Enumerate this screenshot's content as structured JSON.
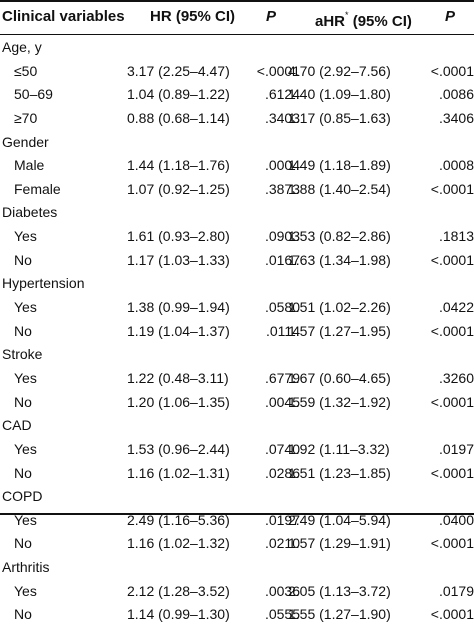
{
  "headers": {
    "variable": "Clinical variables",
    "hr": "HR (95% CI)",
    "p1": "P",
    "ahr_prefix": "aHR",
    "ahr_marker": "*",
    "ahr_suffix": " (95% CI)",
    "p2": "P"
  },
  "rows": [
    {
      "label": "Age, y",
      "hr": "",
      "p1": "",
      "ahr": "",
      "p2": ""
    },
    {
      "label": "≤50",
      "hr": "3.17 (2.25–4.47)",
      "p1": "<.0001",
      "ahr": "4.70 (2.92–7.56)",
      "p2": "<.0001"
    },
    {
      "label": "50–69",
      "hr": "1.04 (0.89–1.22)",
      "p1": ".6124",
      "ahr": "1.40 (1.09–1.80)",
      "p2": ".0086"
    },
    {
      "label": "≥70",
      "hr": "0.88 (0.68–1.14)",
      "p1": ".3403",
      "ahr": "1.17 (0.85–1.63)",
      "p2": ".3406"
    },
    {
      "label": "Gender",
      "hr": "",
      "p1": "",
      "ahr": "",
      "p2": ""
    },
    {
      "label": "Male",
      "hr": "1.44 (1.18–1.76)",
      "p1": ".0004",
      "ahr": "1.49 (1.18–1.89)",
      "p2": ".0008"
    },
    {
      "label": "Female",
      "hr": "1.07 (0.92–1.25)",
      "p1": ".3873",
      "ahr": "1.88 (1.40–2.54)",
      "p2": "<.0001"
    },
    {
      "label": "Diabetes",
      "hr": "",
      "p1": "",
      "ahr": "",
      "p2": ""
    },
    {
      "label": "Yes",
      "hr": "1.61 (0.93–2.80)",
      "p1": ".0903",
      "ahr": "1.53 (0.82–2.86)",
      "p2": ".1813"
    },
    {
      "label": "No",
      "hr": "1.17 (1.03–1.33)",
      "p1": ".0167",
      "ahr": "1.63 (1.34–1.98)",
      "p2": "<.0001"
    },
    {
      "label": "Hypertension",
      "hr": "",
      "p1": "",
      "ahr": "",
      "p2": ""
    },
    {
      "label": "Yes",
      "hr": "1.38 (0.99–1.94)",
      "p1": ".0580",
      "ahr": "1.51 (1.02–2.26)",
      "p2": ".0422"
    },
    {
      "label": "No",
      "hr": "1.19 (1.04–1.37)",
      "p1": ".0114",
      "ahr": "1.57 (1.27–1.95)",
      "p2": "<.0001"
    },
    {
      "label": "Stroke",
      "hr": "",
      "p1": "",
      "ahr": "",
      "p2": ""
    },
    {
      "label": "Yes",
      "hr": "1.22 (0.48–3.11)",
      "p1": ".6779",
      "ahr": "1.67 (0.60–4.65)",
      "p2": ".3260"
    },
    {
      "label": "No",
      "hr": "1.20 (1.06–1.35)",
      "p1": ".0045",
      "ahr": "1.59 (1.32–1.92)",
      "p2": "<.0001"
    },
    {
      "label": "CAD",
      "hr": "",
      "p1": "",
      "ahr": "",
      "p2": ""
    },
    {
      "label": "Yes",
      "hr": "1.53 (0.96–2.44)",
      "p1": ".0740",
      "ahr": "1.92 (1.11–3.32)",
      "p2": ".0197"
    },
    {
      "label": "No",
      "hr": "1.16 (1.02–1.31)",
      "p1": ".0286",
      "ahr": "1.51 (1.23–1.85)",
      "p2": "<.0001"
    },
    {
      "label": "COPD",
      "hr": "",
      "p1": "",
      "ahr": "",
      "p2": ""
    },
    {
      "label": "Yes",
      "hr": "2.49 (1.16–5.36)",
      "p1": ".0197",
      "ahr": "2.49 (1.04–5.94)",
      "p2": ".0400"
    },
    {
      "label": "No",
      "hr": "1.16 (1.02–1.32)",
      "p1": ".0210",
      "ahr": "1.57 (1.29–1.91)",
      "p2": "<.0001"
    },
    {
      "label": "Arthritis",
      "hr": "",
      "p1": "",
      "ahr": "",
      "p2": ""
    },
    {
      "label": "Yes",
      "hr": "2.12 (1.28–3.52)",
      "p1": ".0036",
      "ahr": "2.05 (1.13–3.72)",
      "p2": ".0179"
    },
    {
      "label": "No",
      "hr": "1.14 (0.99–1.30)",
      "p1": ".0555",
      "ahr": "1.55 (1.27–1.90)",
      "p2": "<.0001"
    }
  ]
}
